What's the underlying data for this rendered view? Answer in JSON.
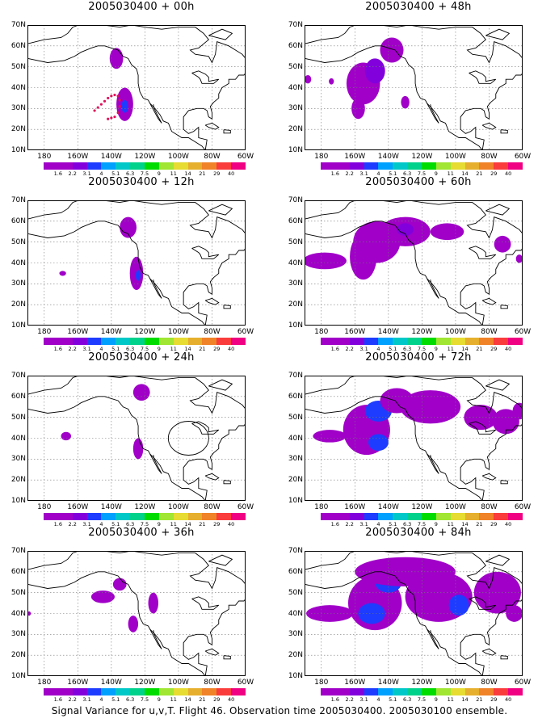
{
  "colorbar": {
    "labels": [
      "1.6",
      "2.2",
      "3.1",
      "4",
      "5.1",
      "6.3",
      "7.5",
      "9",
      "11",
      "14",
      "21",
      "29",
      "40"
    ],
    "colors": [
      "#a000c8",
      "#8200dc",
      "#1e3cff",
      "#00a0ff",
      "#00c8c8",
      "#00d28c",
      "#00dc00",
      "#a0e632",
      "#e6dc32",
      "#e6af2d",
      "#f08228",
      "#fa3c3c",
      "#f00082"
    ]
  },
  "axes": {
    "lat_labels": [
      "70N",
      "60N",
      "50N",
      "40N",
      "30N",
      "20N",
      "10N"
    ],
    "lon_labels": [
      "180",
      "160W",
      "140W",
      "120W",
      "100W",
      "80W",
      "60W"
    ]
  },
  "panels": [
    {
      "title": "2005030400 + 00h"
    },
    {
      "title": "2005030400 + 48h"
    },
    {
      "title": "2005030400 + 12h"
    },
    {
      "title": "2005030400 + 60h"
    },
    {
      "title": "2005030400 + 24h"
    },
    {
      "title": "2005030400 + 72h"
    },
    {
      "title": "2005030400 + 36h"
    },
    {
      "title": "2005030400 + 84h"
    }
  ],
  "caption": "Signal Variance for u,v,T. Flight 46. Observation time 2005030400. 2005030100 ensemble."
}
